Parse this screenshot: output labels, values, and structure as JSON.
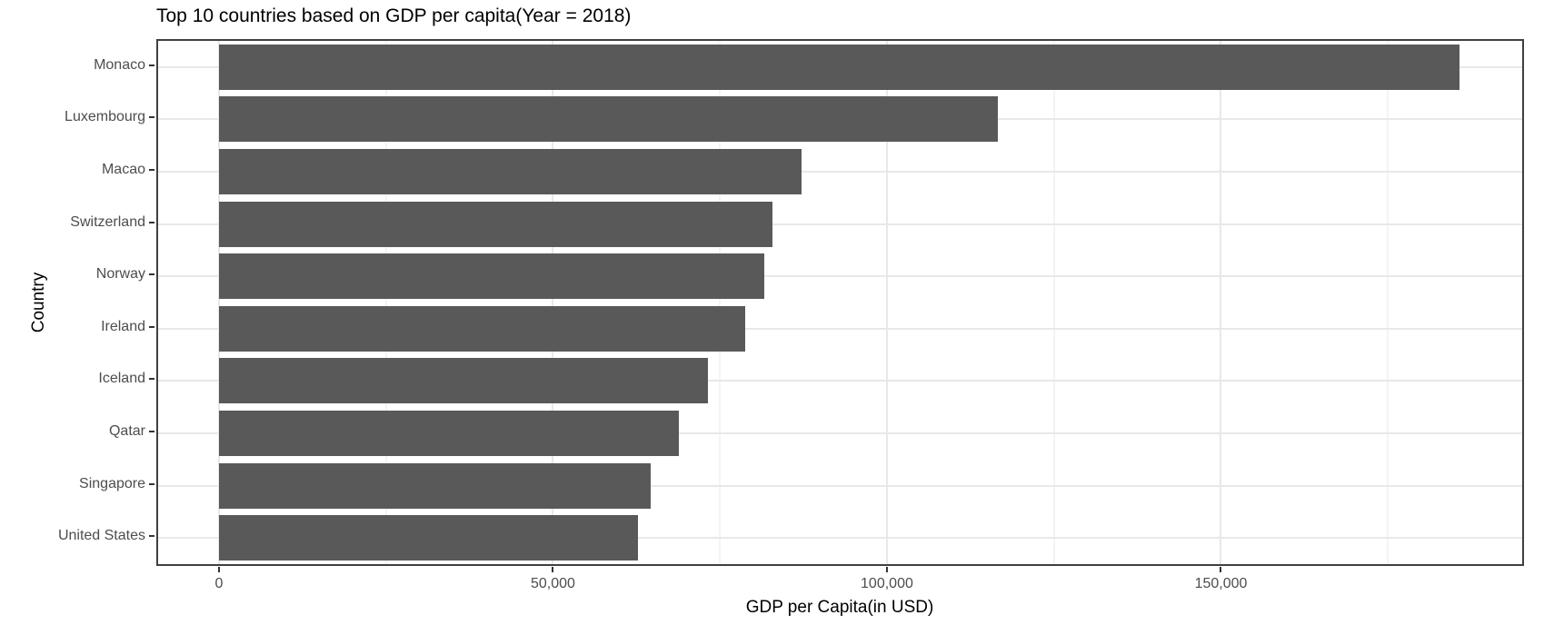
{
  "chart_data": {
    "type": "bar",
    "orientation": "horizontal",
    "title": "Top 10 countries based on GDP per capita(Year = 2018)",
    "xlabel": "GDP per Capita(in USD)",
    "ylabel": "Country",
    "categories": [
      "Monaco",
      "Luxembourg",
      "Macao",
      "Switzerland",
      "Norway",
      "Ireland",
      "Iceland",
      "Qatar",
      "Singapore",
      "United States"
    ],
    "values": [
      185741,
      116640,
      87209,
      82797,
      81697,
      78806,
      73191,
      68794,
      64582,
      62795
    ],
    "xlim": [
      -9100,
      195100
    ],
    "x_ticks": [
      0,
      50000,
      100000,
      150000
    ],
    "x_tick_labels": [
      "0",
      "50,000",
      "100,000",
      "150,000"
    ],
    "x_minor_ticks": [
      25000,
      75000,
      125000,
      175000
    ],
    "grid": "vertical major+minor, horizontal major at category centers",
    "legend": "none",
    "colors": {
      "bar": "#595959",
      "panel_border": "#404040",
      "grid_major": "#e8e8e8",
      "grid_minor": "#f4f4f4",
      "tick_mark": "#333333",
      "tick_label": "#4d4d4d",
      "title_text": "#000000"
    }
  }
}
